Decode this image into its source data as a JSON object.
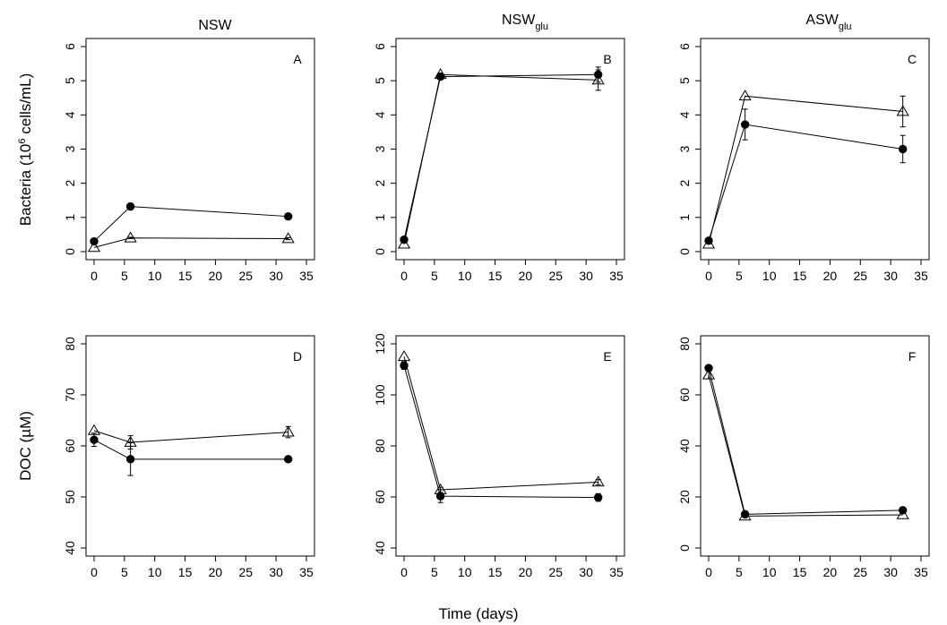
{
  "figure": {
    "column_titles": [
      {
        "base": "NSW",
        "sub": ""
      },
      {
        "base": "NSW",
        "sub": "glu"
      },
      {
        "base": "ASW",
        "sub": "glu"
      }
    ],
    "ylabel_top": {
      "pre": "Bacteria (10",
      "sup": "6",
      "post": " cells/mL)"
    },
    "ylabel_bottom": "DOC (µM)",
    "xlabel": "Time (days)"
  },
  "chart_data": [
    {
      "type": "scatter",
      "panel": "A",
      "row": 0,
      "col": 0,
      "xlim": [
        0,
        35
      ],
      "ylim": [
        0,
        6
      ],
      "x_ticks": [
        0,
        5,
        10,
        15,
        20,
        25,
        30,
        35
      ],
      "y_ticks": [
        0,
        1,
        2,
        3,
        4,
        5,
        6
      ],
      "series": [
        {
          "marker": "filled-circle",
          "x": [
            0,
            6,
            32
          ],
          "y": [
            0.3,
            1.32,
            1.03
          ],
          "err": [
            0,
            0,
            0
          ]
        },
        {
          "marker": "open-triangle",
          "x": [
            0,
            6,
            32
          ],
          "y": [
            0.12,
            0.4,
            0.38
          ],
          "err": [
            0,
            0.02,
            0.03
          ]
        }
      ]
    },
    {
      "type": "scatter",
      "panel": "B",
      "row": 0,
      "col": 1,
      "xlim": [
        0,
        35
      ],
      "ylim": [
        0,
        6
      ],
      "x_ticks": [
        0,
        5,
        10,
        15,
        20,
        25,
        30,
        35
      ],
      "y_ticks": [
        0,
        1,
        2,
        3,
        4,
        5,
        6
      ],
      "series": [
        {
          "marker": "filled-circle",
          "x": [
            0,
            6,
            32
          ],
          "y": [
            0.35,
            5.12,
            5.18
          ],
          "err": [
            0,
            0,
            0.22
          ]
        },
        {
          "marker": "open-triangle",
          "x": [
            0,
            6,
            32
          ],
          "y": [
            0.22,
            5.18,
            5.02
          ],
          "err": [
            0,
            0,
            0.3
          ]
        }
      ]
    },
    {
      "type": "scatter",
      "panel": "C",
      "row": 0,
      "col": 2,
      "xlim": [
        0,
        35
      ],
      "ylim": [
        0,
        6
      ],
      "x_ticks": [
        0,
        5,
        10,
        15,
        20,
        25,
        30,
        35
      ],
      "y_ticks": [
        0,
        1,
        2,
        3,
        4,
        5,
        6
      ],
      "series": [
        {
          "marker": "filled-circle",
          "x": [
            0,
            6,
            32
          ],
          "y": [
            0.32,
            3.72,
            3.0
          ],
          "err": [
            0,
            0.45,
            0.4
          ]
        },
        {
          "marker": "open-triangle",
          "x": [
            0,
            6,
            32
          ],
          "y": [
            0.22,
            4.55,
            4.1
          ],
          "err": [
            0,
            0,
            0.45
          ]
        }
      ]
    },
    {
      "type": "scatter",
      "panel": "D",
      "row": 1,
      "col": 0,
      "xlim": [
        0,
        35
      ],
      "ylim": [
        40,
        80
      ],
      "x_ticks": [
        0,
        5,
        10,
        15,
        20,
        25,
        30,
        35
      ],
      "y_ticks": [
        40,
        50,
        60,
        70,
        80
      ],
      "series": [
        {
          "marker": "filled-circle",
          "x": [
            0,
            6,
            32
          ],
          "y": [
            61.2,
            57.4,
            57.4
          ],
          "err": [
            1.3,
            3.2,
            0.5
          ]
        },
        {
          "marker": "open-triangle",
          "x": [
            0,
            6,
            32
          ],
          "y": [
            63.0,
            60.7,
            62.7
          ],
          "err": [
            0,
            1.3,
            1.1
          ]
        }
      ]
    },
    {
      "type": "scatter",
      "panel": "E",
      "row": 1,
      "col": 1,
      "xlim": [
        0,
        35
      ],
      "ylim": [
        40,
        120
      ],
      "x_ticks": [
        0,
        5,
        10,
        15,
        20,
        25,
        30,
        35
      ],
      "y_ticks": [
        40,
        60,
        80,
        100,
        120
      ],
      "series": [
        {
          "marker": "filled-circle",
          "x": [
            0,
            6,
            32
          ],
          "y": [
            111.5,
            60.3,
            59.8
          ],
          "err": [
            1.5,
            2.5,
            1.5
          ]
        },
        {
          "marker": "open-triangle",
          "x": [
            0,
            6,
            32
          ],
          "y": [
            115.0,
            62.8,
            65.8
          ],
          "err": [
            0,
            1.0,
            1.0
          ]
        }
      ]
    },
    {
      "type": "scatter",
      "panel": "F",
      "row": 1,
      "col": 2,
      "xlim": [
        0,
        35
      ],
      "ylim": [
        0,
        80
      ],
      "x_ticks": [
        0,
        5,
        10,
        15,
        20,
        25,
        30,
        35
      ],
      "y_ticks": [
        0,
        20,
        40,
        60,
        80
      ],
      "series": [
        {
          "marker": "filled-circle",
          "x": [
            0,
            6,
            32
          ],
          "y": [
            70.5,
            13.2,
            14.8
          ],
          "err": [
            0.8,
            0.5,
            0.5
          ]
        },
        {
          "marker": "open-triangle",
          "x": [
            0,
            6,
            32
          ],
          "y": [
            67.8,
            12.5,
            13.0
          ],
          "err": [
            1.5,
            0,
            0
          ]
        }
      ]
    }
  ]
}
